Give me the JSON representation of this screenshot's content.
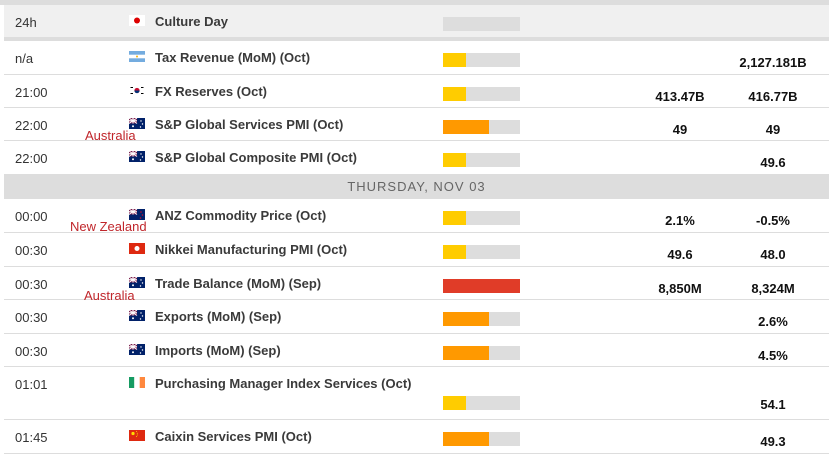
{
  "colors": {
    "low": "#ffcc00",
    "medium": "#ff9900",
    "high": "#e03c28",
    "track": "#dddddd"
  },
  "day_header": "THURSDAY, NOV 03",
  "annotations": [
    {
      "text": "Australia"
    },
    {
      "text": "New Zealand"
    },
    {
      "text": "Australia"
    }
  ],
  "events": [
    {
      "time": "24h",
      "flag": "japan",
      "name": "Culture Day",
      "impact": "none",
      "impact_level": 0,
      "actual": "",
      "previous": "",
      "holiday": true
    },
    {
      "time": "n/a",
      "flag": "argentina",
      "name": "Tax Revenue (MoM) (Oct)",
      "impact": "low",
      "impact_level": 1,
      "actual": "",
      "previous": "2,127.181B"
    },
    {
      "time": "21:00",
      "flag": "south-korea",
      "name": "FX Reserves (Oct)",
      "impact": "low",
      "impact_level": 1,
      "actual": "413.47B",
      "previous": "416.77B"
    },
    {
      "time": "22:00",
      "flag": "australia",
      "name": "S&P Global Services PMI (Oct)",
      "impact": "medium",
      "impact_level": 2,
      "actual": "49",
      "previous": "49"
    },
    {
      "time": "22:00",
      "flag": "australia",
      "name": "S&P Global Composite PMI (Oct)",
      "impact": "low",
      "impact_level": 1,
      "actual": "",
      "previous": "49.6"
    },
    {
      "time": "00:00",
      "flag": "new-zealand",
      "name": "ANZ Commodity Price (Oct)",
      "impact": "low",
      "impact_level": 1,
      "actual": "2.1%",
      "previous": "-0.5%"
    },
    {
      "time": "00:30",
      "flag": "hong-kong",
      "name": "Nikkei Manufacturing PMI (Oct)",
      "impact": "low",
      "impact_level": 1,
      "actual": "49.6",
      "previous": "48.0"
    },
    {
      "time": "00:30",
      "flag": "australia",
      "name": "Trade Balance (MoM) (Sep)",
      "impact": "high",
      "impact_level": 3,
      "actual": "8,850M",
      "previous": "8,324M"
    },
    {
      "time": "00:30",
      "flag": "australia",
      "name": "Exports (MoM) (Sep)",
      "impact": "medium",
      "impact_level": 2,
      "actual": "",
      "previous": "2.6%"
    },
    {
      "time": "00:30",
      "flag": "australia",
      "name": "Imports (MoM) (Sep)",
      "impact": "medium",
      "impact_level": 2,
      "actual": "",
      "previous": "4.5%"
    },
    {
      "time": "01:01",
      "flag": "ireland",
      "name": "Purchasing Manager Index Services (Oct)",
      "impact": "low",
      "impact_level": 1,
      "actual": "",
      "previous": "54.1",
      "tall": true
    },
    {
      "time": "01:45",
      "flag": "china",
      "name": "Caixin Services PMI (Oct)",
      "impact": "medium",
      "impact_level": 2,
      "actual": "",
      "previous": "49.3"
    }
  ]
}
